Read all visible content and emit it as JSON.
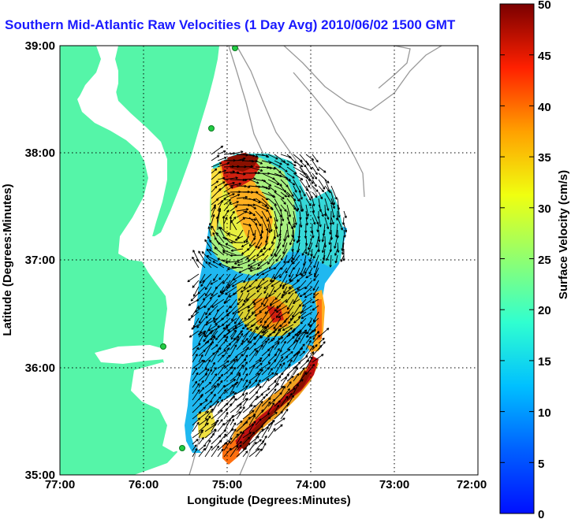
{
  "title": "Southern Mid-Atlantic Raw Velocities (1 Day Avg) 2010/06/02 1500 GMT",
  "map": {
    "x_axis": {
      "label": "Longitude (Degrees:Minutes)",
      "ticks": [
        "77:00",
        "76:00",
        "75:00",
        "74:00",
        "73:00",
        "72:00"
      ],
      "range": [
        -77,
        -72
      ]
    },
    "y_axis": {
      "label": "Latitude (Degrees:Minutes)",
      "ticks": [
        "39:00",
        "38:00",
        "37:00",
        "36:00",
        "35:00"
      ],
      "range": [
        35,
        39
      ]
    },
    "grid": "dotted",
    "land_color": "#55f5a8",
    "water_color": "#ffffff",
    "bathymetry_color": "#999999",
    "arrow_color": "#000000",
    "station_color": "#22cc44"
  },
  "colorbar": {
    "label": "Surface Velocity (cm/s)",
    "ticks": [
      "0",
      "5",
      "10",
      "15",
      "20",
      "25",
      "30",
      "35",
      "40",
      "45",
      "50"
    ],
    "range": [
      0,
      50
    ],
    "colormap": "jet"
  }
}
